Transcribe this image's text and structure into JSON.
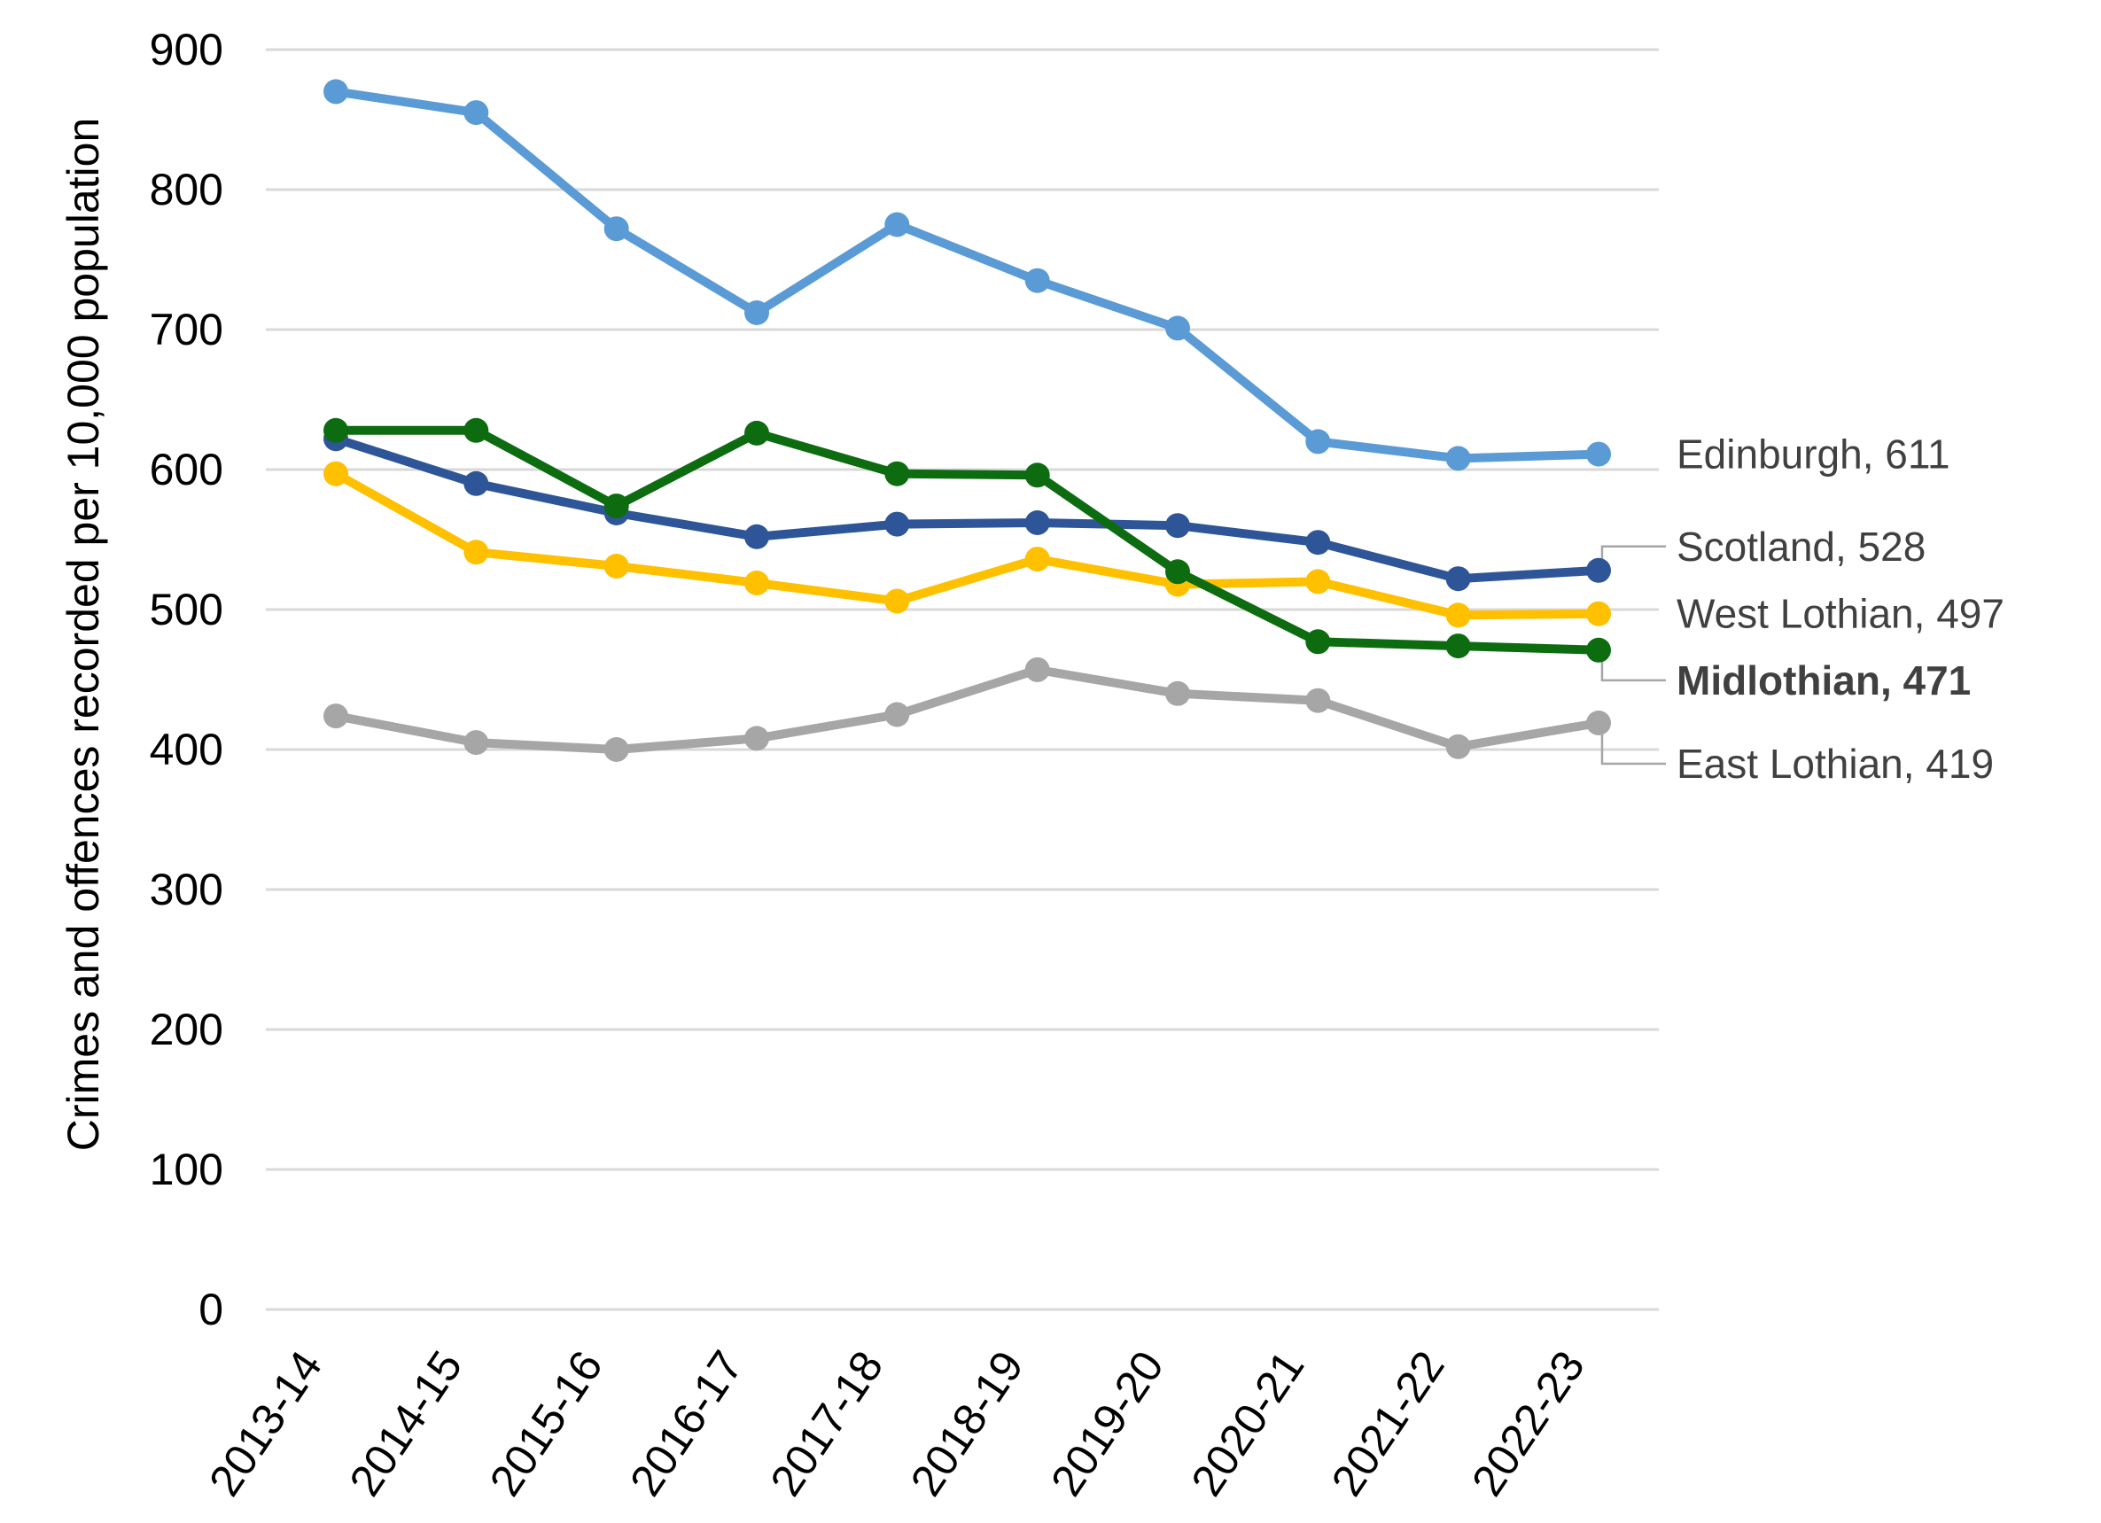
{
  "chart_data": {
    "type": "line",
    "title": "",
    "xlabel": "",
    "ylabel": "Crimes and offences recorded per 10,000 population",
    "categories": [
      "2013-14",
      "2014-15",
      "2015-16",
      "2016-17",
      "2017-18",
      "2018-19",
      "2019-20",
      "2020-21",
      "2021-22",
      "2022-23"
    ],
    "ylim": [
      0,
      900
    ],
    "yticks": [
      0,
      100,
      200,
      300,
      400,
      500,
      600,
      700,
      800,
      900
    ],
    "grid": "horizontal",
    "legend_position": "end-of-line labels at right",
    "series": [
      {
        "name": "Edinburgh",
        "end_label": "Edinburgh, 611",
        "final_value": 611,
        "color": "#5B9BD5",
        "emphasis": false,
        "values": [
          870,
          855,
          772,
          712,
          775,
          735,
          701,
          620,
          608,
          611
        ]
      },
      {
        "name": "Scotland",
        "end_label": "Scotland, 528",
        "final_value": 528,
        "color": "#2E5597",
        "emphasis": false,
        "values": [
          622,
          590,
          569,
          552,
          561,
          562,
          560,
          548,
          522,
          528
        ]
      },
      {
        "name": "West Lothian",
        "end_label": "West Lothian, 497",
        "final_value": 497,
        "color": "#FFC000",
        "emphasis": false,
        "values": [
          597,
          541,
          531,
          519,
          506,
          536,
          518,
          520,
          496,
          497
        ]
      },
      {
        "name": "Midlothian",
        "end_label": "Midlothian, 471",
        "final_value": 471,
        "color": "#0D6B10",
        "emphasis": true,
        "values": [
          628,
          628,
          574,
          626,
          597,
          596,
          527,
          477,
          474,
          471
        ]
      },
      {
        "name": "East Lothian",
        "end_label": "East Lothian, 419",
        "final_value": 419,
        "color": "#A6A6A6",
        "emphasis": false,
        "values": [
          424,
          405,
          400,
          408,
          425,
          457,
          440,
          435,
          402,
          419
        ]
      }
    ],
    "style": {
      "background": "#FFFFFF",
      "gridline_color": "#D9D9D9",
      "axis_text_color": "#000000",
      "end_label_color": "#404040",
      "leader_line_color": "#A6A6A6"
    }
  }
}
